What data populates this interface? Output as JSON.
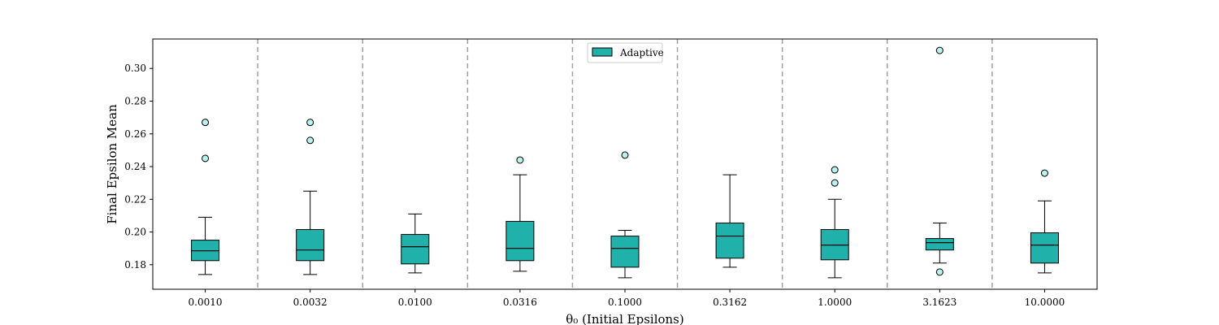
{
  "chart_data": {
    "type": "box",
    "xlabel": "θ₀ (Initial Epsilons)",
    "ylabel": "Final Epsilon Mean",
    "categories": [
      "0.0010",
      "0.0032",
      "0.0100",
      "0.0316",
      "0.1000",
      "0.3162",
      "1.0000",
      "3.1623",
      "10.0000"
    ],
    "ylim": [
      0.165,
      0.318
    ],
    "yticks": [
      "0.18",
      "0.20",
      "0.22",
      "0.24",
      "0.26",
      "0.28",
      "0.30"
    ],
    "grid": false,
    "category_separators": true,
    "legend": {
      "position": "top-center",
      "entries": [
        "Adaptive"
      ]
    },
    "series": [
      {
        "name": "Adaptive",
        "color": "#20b2aa",
        "boxes": [
          {
            "whisker_low": 0.174,
            "q1": 0.1825,
            "median": 0.1885,
            "q3": 0.195,
            "whisker_high": 0.209,
            "outliers": [
              0.245,
              0.267
            ]
          },
          {
            "whisker_low": 0.174,
            "q1": 0.1825,
            "median": 0.189,
            "q3": 0.2015,
            "whisker_high": 0.225,
            "outliers": [
              0.256,
              0.267
            ]
          },
          {
            "whisker_low": 0.175,
            "q1": 0.1805,
            "median": 0.191,
            "q3": 0.1985,
            "whisker_high": 0.211,
            "outliers": []
          },
          {
            "whisker_low": 0.176,
            "q1": 0.1825,
            "median": 0.19,
            "q3": 0.2065,
            "whisker_high": 0.235,
            "outliers": [
              0.244
            ]
          },
          {
            "whisker_low": 0.172,
            "q1": 0.1785,
            "median": 0.19,
            "q3": 0.1975,
            "whisker_high": 0.201,
            "outliers": [
              0.247
            ]
          },
          {
            "whisker_low": 0.1785,
            "q1": 0.184,
            "median": 0.1975,
            "q3": 0.2055,
            "whisker_high": 0.235,
            "outliers": []
          },
          {
            "whisker_low": 0.172,
            "q1": 0.183,
            "median": 0.192,
            "q3": 0.2015,
            "whisker_high": 0.22,
            "outliers": [
              0.23,
              0.238
            ]
          },
          {
            "whisker_low": 0.181,
            "q1": 0.189,
            "median": 0.1935,
            "q3": 0.196,
            "whisker_high": 0.2055,
            "outliers": [
              0.1755,
              0.311
            ]
          },
          {
            "whisker_low": 0.175,
            "q1": 0.181,
            "median": 0.192,
            "q3": 0.1995,
            "whisker_high": 0.219,
            "outliers": [
              0.236
            ]
          }
        ]
      }
    ]
  }
}
